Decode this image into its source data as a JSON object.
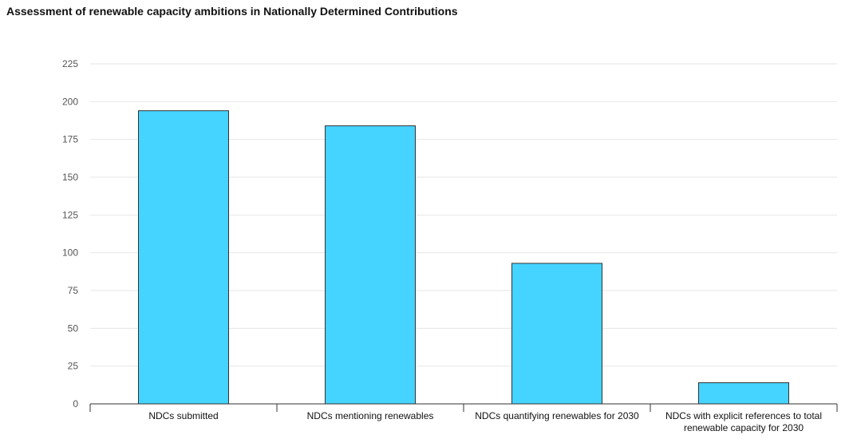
{
  "chart_data": {
    "type": "bar",
    "title": "Assessment of renewable capacity ambitions in Nationally Determined Contributions",
    "xlabel": "",
    "ylabel": "",
    "categories": [
      "NDCs submitted",
      "NDCs mentioning renewables",
      "NDCs quantifying renewables for 2030",
      "NDCs with explicit references to total renewable capacity for 2030"
    ],
    "category_lines": [
      [
        "NDCs submitted"
      ],
      [
        "NDCs mentioning renewables"
      ],
      [
        "NDCs quantifying renewables for 2030"
      ],
      [
        "NDCs with explicit references to total",
        "renewable capacity for 2030"
      ]
    ],
    "values": [
      194,
      184,
      93,
      14
    ],
    "ylim": [
      0,
      225
    ],
    "yticks": [
      "0",
      "25",
      "50",
      "75",
      "100",
      "125",
      "150",
      "175",
      "200",
      "225"
    ],
    "grid": true,
    "bar_color": "#45d3ff",
    "bar_stroke": "#333333",
    "grid_color": "#e6e6e6"
  }
}
